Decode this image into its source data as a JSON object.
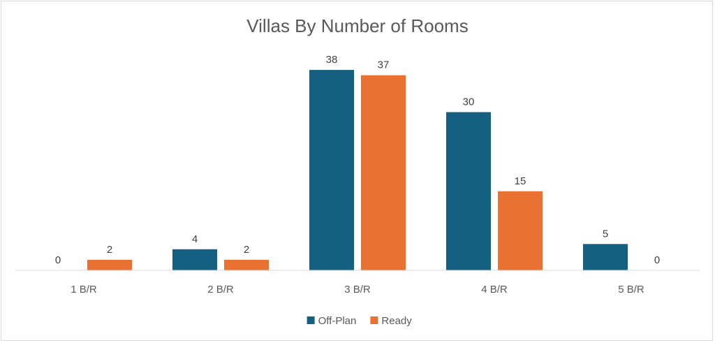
{
  "chart_data": {
    "type": "bar",
    "title": "Villas By Number of Rooms",
    "xlabel": "",
    "ylabel": "",
    "categories": [
      "1 B/R",
      "2 B/R",
      "3 B/R",
      "4 B/R",
      "5 B/R"
    ],
    "series": [
      {
        "name": "Off-Plan",
        "color": "#156082",
        "values": [
          0,
          4,
          38,
          30,
          5
        ]
      },
      {
        "name": "Ready",
        "color": "#E97132",
        "values": [
          2,
          2,
          37,
          15,
          0
        ]
      }
    ],
    "ylim": [
      0,
      40
    ],
    "grid": false,
    "legend": "bottom",
    "data_labels": true
  }
}
